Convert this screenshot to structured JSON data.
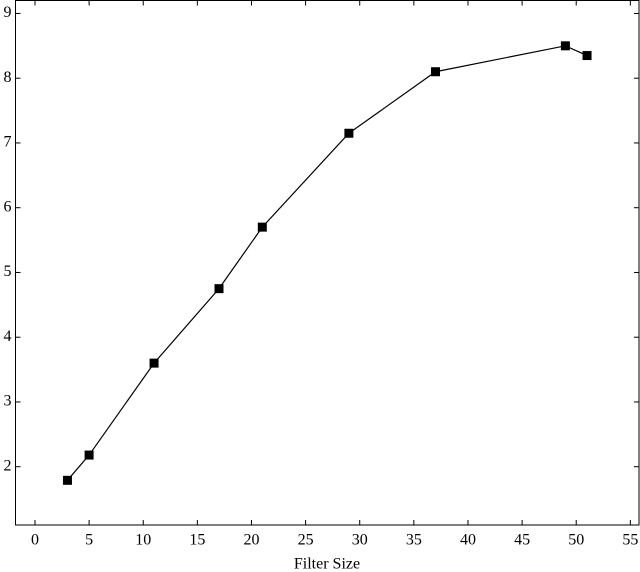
{
  "chart_data": {
    "type": "line",
    "x_label": "Filter Size",
    "x": [
      3,
      5,
      11,
      17,
      21,
      29,
      37,
      49,
      51
    ],
    "series": [
      {
        "name": null,
        "color": "#000000",
        "marker": "square",
        "values": [
          1.79,
          2.18,
          3.6,
          4.75,
          5.7,
          7.15,
          8.1,
          8.5,
          8.35
        ]
      }
    ],
    "xlim": [
      -1.8,
      55.8
    ],
    "ylim": [
      1.1,
      9.2
    ],
    "xticks": [
      0,
      5,
      10,
      15,
      20,
      25,
      30,
      35,
      40,
      45,
      50,
      55
    ],
    "yticks": [
      2,
      3,
      4,
      5,
      6,
      7,
      8,
      9
    ],
    "grid": false
  }
}
